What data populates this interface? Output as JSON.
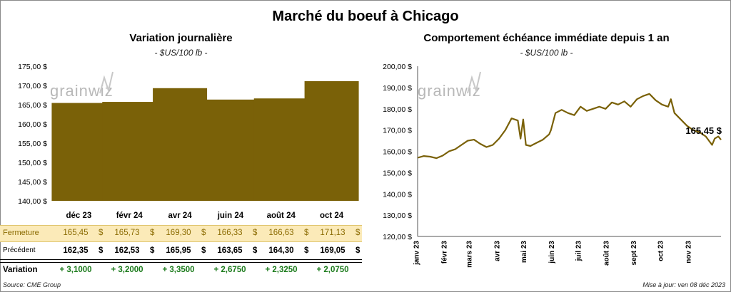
{
  "title": "Marché du boeuf à Chicago",
  "left_chart": {
    "title": "Variation journalière",
    "subtitle": "- $US/100 lb -"
  },
  "right_chart": {
    "title": "Comportement échéance immédiate depuis 1 an",
    "subtitle": "- $US/100 lb -",
    "last_value_label": "165,45 $"
  },
  "watermark": "grainwiz",
  "colors": {
    "bar": "#7a6108",
    "line": "#7a6108",
    "fermeture_bg": "#fbeab8",
    "fermeture_text": "#8a6a00",
    "positive": "#1a7a1a"
  },
  "table": {
    "rows": [
      {
        "label": "Fermeture",
        "values": [
          "165,45",
          "165,73",
          "169,30",
          "166,33",
          "166,63",
          "171,13"
        ],
        "unit": "$"
      },
      {
        "label": "Précédent",
        "values": [
          "162,35",
          "162,53",
          "165,95",
          "163,65",
          "164,30",
          "169,05"
        ],
        "unit": "$"
      },
      {
        "label": "Variation",
        "values": [
          "+ 3,1000",
          "+ 3,2000",
          "+ 3,3500",
          "+ 2,6750",
          "+ 2,3250",
          "+ 2,0750"
        ],
        "unit": ""
      }
    ]
  },
  "chart_data": [
    {
      "type": "bar",
      "title": "Variation journalière",
      "subtitle": "- $US/100 lb -",
      "categories": [
        "déc 23",
        "févr 24",
        "avr 24",
        "juin 24",
        "août 24",
        "oct 24"
      ],
      "values": [
        165.45,
        165.73,
        169.3,
        166.33,
        166.63,
        171.13
      ],
      "ylim": [
        140,
        175
      ],
      "yticks": [
        "140,00 $",
        "145,00 $",
        "150,00 $",
        "155,00 $",
        "160,00 $",
        "165,00 $",
        "170,00 $",
        "175,00 $"
      ],
      "grid": false
    },
    {
      "type": "line",
      "title": "Comportement échéance immédiate depuis 1 an",
      "subtitle": "- $US/100 lb -",
      "ylim": [
        120,
        200
      ],
      "yticks": [
        "120,00 $",
        "130,00 $",
        "140,00 $",
        "150,00 $",
        "160,00 $",
        "170,00 $",
        "180,00 $",
        "190,00 $",
        "200,00 $"
      ],
      "xticks": [
        "janv 23",
        "févr 23",
        "mars 23",
        "avr 23",
        "mai 23",
        "juin 23",
        "juil 23",
        "août 23",
        "sept 23",
        "oct 23",
        "nov 23"
      ],
      "x": [
        "2023-01-03",
        "2023-01-10",
        "2023-01-17",
        "2023-01-24",
        "2023-01-31",
        "2023-02-07",
        "2023-02-14",
        "2023-02-21",
        "2023-02-28",
        "2023-03-07",
        "2023-03-14",
        "2023-03-21",
        "2023-03-28",
        "2023-04-04",
        "2023-04-11",
        "2023-04-18",
        "2023-04-25",
        "2023-04-28",
        "2023-05-01",
        "2023-05-04",
        "2023-05-09",
        "2023-05-16",
        "2023-05-23",
        "2023-05-30",
        "2023-06-01",
        "2023-06-06",
        "2023-06-13",
        "2023-06-20",
        "2023-06-27",
        "2023-07-04",
        "2023-07-11",
        "2023-07-18",
        "2023-07-25",
        "2023-08-01",
        "2023-08-08",
        "2023-08-15",
        "2023-08-22",
        "2023-08-29",
        "2023-09-05",
        "2023-09-12",
        "2023-09-19",
        "2023-09-26",
        "2023-10-03",
        "2023-10-10",
        "2023-10-13",
        "2023-10-17",
        "2023-10-24",
        "2023-10-31",
        "2023-11-07",
        "2023-11-14",
        "2023-11-21",
        "2023-11-28",
        "2023-12-01",
        "2023-12-05",
        "2023-12-08"
      ],
      "values": [
        157.0,
        157.8,
        157.5,
        156.8,
        158.0,
        160.0,
        161.0,
        163.0,
        165.0,
        165.5,
        163.5,
        162.0,
        163.0,
        166.0,
        170.0,
        175.5,
        174.5,
        166.0,
        175.0,
        163.0,
        162.5,
        164.0,
        165.5,
        168.0,
        170.0,
        178.0,
        179.5,
        178.0,
        177.0,
        181.0,
        179.0,
        180.0,
        181.0,
        180.0,
        183.0,
        182.0,
        183.5,
        181.0,
        184.5,
        186.0,
        187.0,
        184.0,
        182.0,
        181.0,
        184.5,
        178.0,
        175.0,
        172.0,
        170.0,
        169.0,
        167.0,
        163.0,
        166.0,
        167.0,
        165.45
      ],
      "last_label": "165,45 $",
      "grid": false
    }
  ],
  "footer": {
    "source": "Source: CME Group",
    "update": "Mise à jour: ven 08 déc 2023"
  }
}
